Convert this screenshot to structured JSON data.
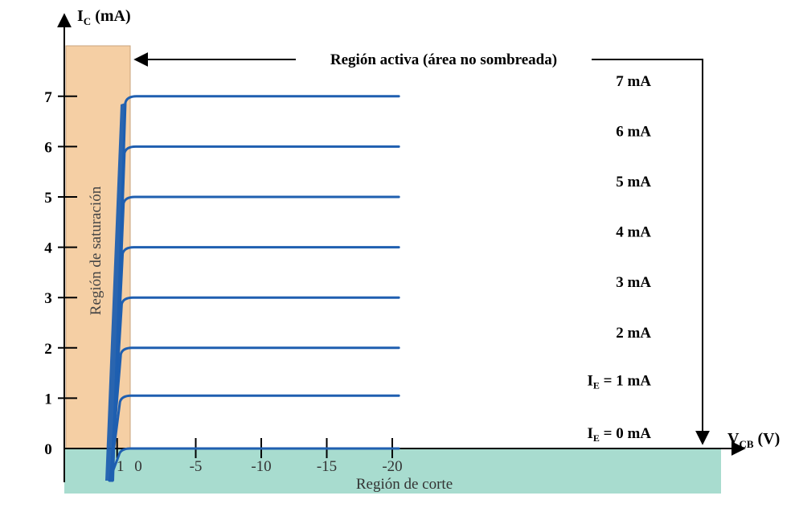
{
  "chart_data": {
    "type": "line",
    "title": "",
    "ylabel_main": "I",
    "ylabel_sub": "C",
    "ylabel_unit": " (mA)",
    "xlabel_main": "V",
    "xlabel_sub": "CB",
    "xlabel_unit": " (V)",
    "x_ticks": [
      {
        "value": 1,
        "label": "1"
      },
      {
        "value": 0,
        "label": "0"
      },
      {
        "value": -5,
        "label": "-5"
      },
      {
        "value": -10,
        "label": "-10"
      },
      {
        "value": -15,
        "label": "-15"
      },
      {
        "value": -20,
        "label": "-20"
      }
    ],
    "y_ticks": [
      0,
      1,
      2,
      3,
      4,
      5,
      6,
      7
    ],
    "series": [
      {
        "ie": 0,
        "label": "I",
        "label_sub": "E",
        "label_rest": " = 0 mA",
        "x_end": -20.5
      },
      {
        "ie": 1.05,
        "label": "I",
        "label_sub": "E",
        "label_rest": " = 1 mA",
        "x_end": -20.5
      },
      {
        "ie": 2,
        "label": "2 mA",
        "x_end": -20.5
      },
      {
        "ie": 3,
        "label": "3 mA",
        "x_end": -20.5
      },
      {
        "ie": 4,
        "label": "4 mA",
        "x_end": -20.5
      },
      {
        "ie": 5,
        "label": "5 mA",
        "x_end": -20.5
      },
      {
        "ie": 6,
        "label": "6 mA",
        "x_end": -20.5
      },
      {
        "ie": 7,
        "label": "7 mA",
        "x_end": -20.5
      }
    ],
    "regions": {
      "active": "Región activa (área no sombreada)",
      "saturation": "Región de saturación",
      "cutoff": "Región de corte"
    },
    "colors": {
      "curve": "#1f5fb0",
      "saturation_fill": "#f5cfa4",
      "saturation_border": "#c9a37c",
      "cutoff_fill": "#a8dccf",
      "axis": "#000000"
    }
  }
}
